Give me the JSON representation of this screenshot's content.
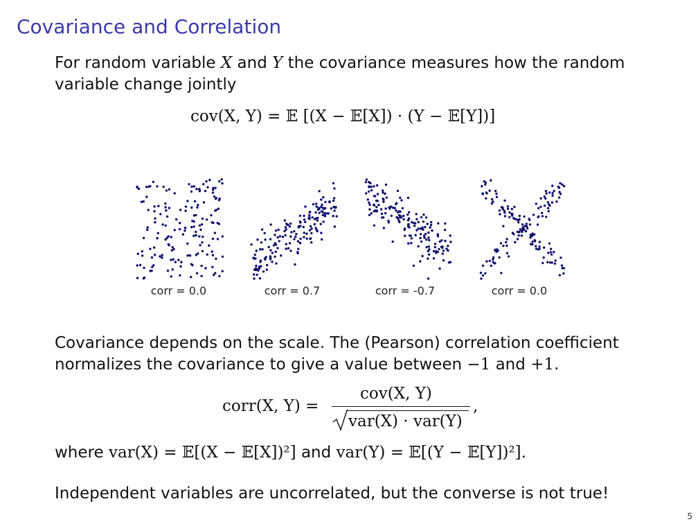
{
  "slide": {
    "title": "Covariance and Correlation",
    "page_number": "5"
  },
  "intro": {
    "text_a": "For random variable ",
    "var_x": "X",
    "text_b": " and ",
    "var_y": "Y",
    "text_c": " the covariance measures how the random variable change jointly"
  },
  "cov_formula": "cov(X, Y) = 𝔼 [(X − 𝔼[X]) · (Y − 𝔼[Y])]",
  "plots": [
    {
      "label": "corr = 0.0",
      "pattern": "uniform"
    },
    {
      "label": "corr = 0.7",
      "pattern": "positive"
    },
    {
      "label": "corr = -0.7",
      "pattern": "negative"
    },
    {
      "label": "corr = 0.0",
      "pattern": "cross"
    }
  ],
  "scale_text": {
    "line1": "Covariance depends on the scale. The (Pearson) correlation coefficient",
    "line2_a": "normalizes the covariance to give a value between ",
    "neg_one": "−1",
    "line2_b": " and ",
    "pos_one": "+1",
    "line2_c": "."
  },
  "corr_formula": {
    "lhs": "corr(X, Y) =",
    "numerator": "cov(X, Y)",
    "denominator": "var(X) · var(Y)",
    "trail": ","
  },
  "where_line": {
    "where": "where ",
    "var_x_def": "var(X) = 𝔼[(X − 𝔼[X])²]",
    "and": " and ",
    "var_y_def": "var(Y) = 𝔼[(Y − 𝔼[Y])²]."
  },
  "conclusion": "Independent variables are uncorrelated, but the converse is not true!",
  "colors": {
    "title": "#3a3aa6",
    "points": "#0d0d6b"
  }
}
